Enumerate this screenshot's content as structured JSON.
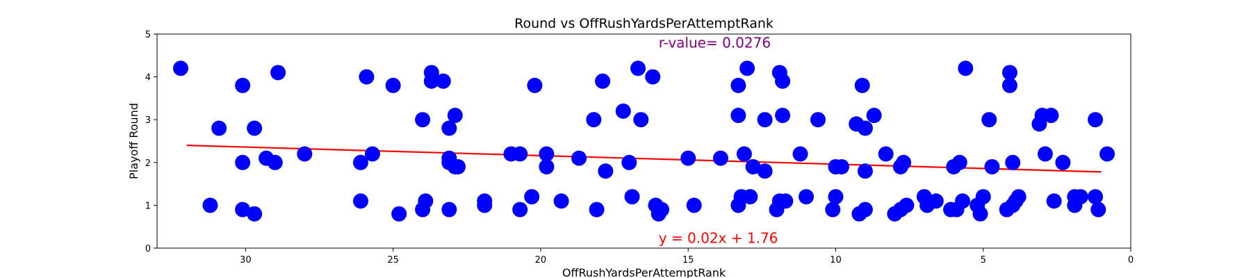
{
  "chart_data": {
    "type": "scatter",
    "title": "Round vs OffRushYardsPerAttemptRank",
    "xlabel": "OffRushYardsPerAttemptRank",
    "ylabel": "Playoff Round",
    "xlim": [
      33,
      0
    ],
    "ylim": [
      0,
      5
    ],
    "x_inverted": true,
    "xticks": [
      30,
      25,
      20,
      15,
      10,
      5,
      0
    ],
    "yticks": [
      0,
      1,
      2,
      3,
      4,
      5
    ],
    "grid": false,
    "colors": {
      "points": "#0000ff",
      "fit_line": "#ff0000",
      "r_text": "#800080",
      "eq_text": "#ff0000"
    },
    "annotations": {
      "r_value": "r-value= 0.0276",
      "equation": "y = 0.02x + 1.76"
    },
    "fit_line": {
      "slope": 0.02,
      "intercept": 1.76,
      "x_range": [
        1,
        32
      ]
    },
    "points": [
      [
        32.2,
        4.2
      ],
      [
        31.2,
        1.0
      ],
      [
        30.9,
        2.8
      ],
      [
        30.1,
        3.8
      ],
      [
        30.1,
        2.0
      ],
      [
        30.1,
        0.9
      ],
      [
        29.7,
        2.8
      ],
      [
        29.7,
        0.8
      ],
      [
        29.3,
        2.1
      ],
      [
        29.0,
        2.0
      ],
      [
        28.9,
        4.1
      ],
      [
        28.0,
        2.2
      ],
      [
        26.1,
        2.0
      ],
      [
        26.1,
        1.1
      ],
      [
        25.9,
        4.0
      ],
      [
        25.7,
        2.2
      ],
      [
        25.0,
        3.8
      ],
      [
        24.8,
        0.8
      ],
      [
        24.0,
        3.0
      ],
      [
        24.0,
        0.9
      ],
      [
        23.9,
        1.1
      ],
      [
        23.7,
        4.1
      ],
      [
        23.7,
        3.9
      ],
      [
        23.3,
        3.9
      ],
      [
        23.1,
        2.8
      ],
      [
        23.1,
        2.1
      ],
      [
        23.1,
        2.0
      ],
      [
        23.1,
        0.9
      ],
      [
        22.9,
        3.1
      ],
      [
        22.9,
        1.9
      ],
      [
        22.8,
        1.9
      ],
      [
        21.9,
        1.1
      ],
      [
        21.9,
        1.0
      ],
      [
        21.0,
        2.2
      ],
      [
        20.7,
        2.2
      ],
      [
        20.7,
        0.9
      ],
      [
        20.3,
        1.2
      ],
      [
        20.2,
        3.8
      ],
      [
        19.8,
        2.2
      ],
      [
        19.8,
        1.9
      ],
      [
        19.3,
        1.1
      ],
      [
        18.7,
        2.1
      ],
      [
        18.2,
        3.0
      ],
      [
        18.1,
        0.9
      ],
      [
        17.9,
        3.9
      ],
      [
        17.8,
        1.8
      ],
      [
        17.2,
        3.2
      ],
      [
        17.0,
        2.0
      ],
      [
        16.9,
        1.2
      ],
      [
        16.7,
        4.2
      ],
      [
        16.6,
        3.0
      ],
      [
        16.2,
        4.0
      ],
      [
        16.1,
        1.0
      ],
      [
        16.0,
        0.8
      ],
      [
        15.9,
        0.9
      ],
      [
        15.0,
        2.1
      ],
      [
        14.8,
        1.0
      ],
      [
        13.9,
        2.1
      ],
      [
        13.3,
        3.8
      ],
      [
        13.3,
        3.1
      ],
      [
        13.3,
        1.0
      ],
      [
        13.2,
        1.2
      ],
      [
        13.1,
        2.2
      ],
      [
        13.0,
        4.2
      ],
      [
        12.9,
        1.2
      ],
      [
        12.8,
        1.9
      ],
      [
        12.4,
        3.0
      ],
      [
        12.4,
        1.8
      ],
      [
        12.0,
        0.9
      ],
      [
        11.9,
        4.1
      ],
      [
        11.9,
        1.1
      ],
      [
        11.8,
        3.9
      ],
      [
        11.8,
        3.1
      ],
      [
        11.7,
        1.1
      ],
      [
        11.2,
        2.2
      ],
      [
        11.0,
        1.2
      ],
      [
        10.6,
        3.0
      ],
      [
        10.1,
        0.9
      ],
      [
        10.0,
        1.9
      ],
      [
        10.0,
        1.2
      ],
      [
        9.8,
        1.9
      ],
      [
        9.3,
        2.9
      ],
      [
        9.2,
        0.8
      ],
      [
        9.1,
        3.8
      ],
      [
        9.0,
        2.8
      ],
      [
        9.0,
        1.8
      ],
      [
        9.0,
        0.9
      ],
      [
        8.7,
        3.1
      ],
      [
        8.3,
        2.2
      ],
      [
        8.0,
        0.8
      ],
      [
        7.8,
        0.9
      ],
      [
        7.8,
        1.9
      ],
      [
        7.7,
        2.0
      ],
      [
        7.6,
        1.0
      ],
      [
        7.0,
        1.2
      ],
      [
        6.9,
        1.0
      ],
      [
        6.6,
        1.1
      ],
      [
        6.1,
        0.9
      ],
      [
        6.0,
        1.9
      ],
      [
        5.9,
        0.9
      ],
      [
        5.8,
        2.0
      ],
      [
        5.7,
        1.1
      ],
      [
        5.6,
        4.2
      ],
      [
        5.2,
        1.0
      ],
      [
        5.1,
        0.8
      ],
      [
        5.0,
        1.2
      ],
      [
        4.8,
        3.0
      ],
      [
        4.7,
        1.9
      ],
      [
        4.2,
        0.9
      ],
      [
        4.1,
        4.1
      ],
      [
        4.1,
        3.8
      ],
      [
        4.0,
        1.0
      ],
      [
        4.0,
        2.0
      ],
      [
        3.9,
        1.1
      ],
      [
        3.8,
        1.2
      ],
      [
        3.1,
        2.9
      ],
      [
        3.0,
        3.1
      ],
      [
        2.9,
        2.2
      ],
      [
        2.7,
        3.1
      ],
      [
        2.6,
        1.1
      ],
      [
        2.3,
        2.0
      ],
      [
        1.9,
        1.2
      ],
      [
        1.9,
        1.0
      ],
      [
        1.7,
        1.2
      ],
      [
        1.2,
        1.2
      ],
      [
        1.2,
        3.0
      ],
      [
        1.1,
        0.9
      ],
      [
        0.8,
        2.2
      ]
    ]
  }
}
